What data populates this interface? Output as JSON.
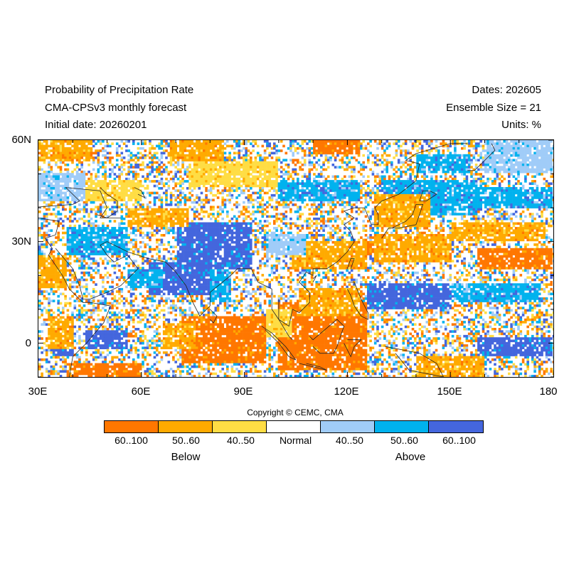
{
  "header": {
    "title": "Probability of Precipitation Rate",
    "model": "CMA-CPSv3 monthly forecast",
    "initial_date": "Initial date: 20260201",
    "dates": "Dates: 202605",
    "ensemble": "Ensemble Size = 21",
    "units": "Units: %"
  },
  "map": {
    "lat_labels": [
      "60N",
      "30N",
      "0"
    ],
    "lon_labels": [
      "30E",
      "60E",
      "90E",
      "120E",
      "150E",
      "180"
    ],
    "extent": {
      "lon_min": 30,
      "lon_max": 180,
      "lat_min": -10,
      "lat_max": 60
    },
    "colors": {
      "below_60_100": "#ff7700",
      "below_50_60": "#ffaa00",
      "below_40_50": "#ffdd44",
      "normal": "#ffffff",
      "above_40_50": "#a0ccf8",
      "above_50_60": "#00b2ee",
      "above_60_100": "#4466dd"
    }
  },
  "legend": {
    "bins": [
      {
        "label": "60..100",
        "color": "#ff7700"
      },
      {
        "label": "50..60",
        "color": "#ffaa00"
      },
      {
        "label": "40..50",
        "color": "#ffdd44"
      },
      {
        "label": "Normal",
        "color": "#ffffff"
      },
      {
        "label": "40..50",
        "color": "#a0ccf8"
      },
      {
        "label": "50..60",
        "color": "#00b2ee"
      },
      {
        "label": "60..100",
        "color": "#4466dd"
      }
    ],
    "below": "Below",
    "above": "Above"
  },
  "copyright": "Copyright © CEMC, CMA"
}
